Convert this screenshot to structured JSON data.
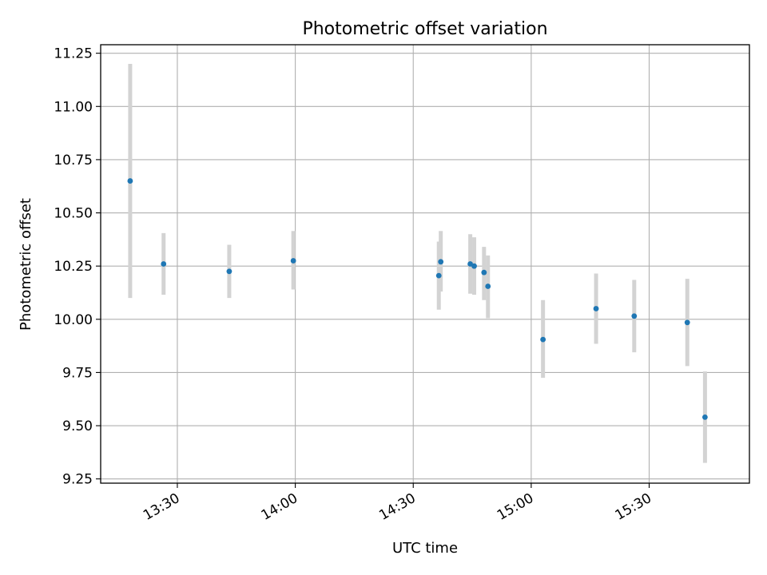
{
  "chart_data": {
    "type": "scatter",
    "title": "Photometric offset variation",
    "xlabel": "UTC time",
    "ylabel": "Photometric offset",
    "x_tick_labels": [
      "13:30",
      "14:00",
      "14:30",
      "15:00",
      "15:30"
    ],
    "x_tick_minutes": [
      810,
      840,
      870,
      900,
      930
    ],
    "xlim_minutes": [
      790.5,
      955.5
    ],
    "ylim": [
      9.23,
      11.29
    ],
    "y_ticks": [
      9.25,
      9.5,
      9.75,
      10.0,
      10.25,
      10.5,
      10.75,
      11.0,
      11.25
    ],
    "y_tick_labels": [
      "9.25",
      "9.50",
      "9.75",
      "10.00",
      "10.25",
      "10.50",
      "10.75",
      "11.00",
      "11.25"
    ],
    "grid": true,
    "colors": {
      "point": "#1f77b4",
      "error_bar": "#d3d3d3",
      "grid": "#b0b0b0",
      "axes": "#000000"
    },
    "points": [
      {
        "time": "13:18",
        "minutes": 798.0,
        "y": 10.65,
        "err_low": 10.1,
        "err_high": 11.2
      },
      {
        "time": "13:26",
        "minutes": 806.5,
        "y": 10.26,
        "err_low": 10.115,
        "err_high": 10.405
      },
      {
        "time": "13:43",
        "minutes": 823.2,
        "y": 10.225,
        "err_low": 10.1,
        "err_high": 10.35
      },
      {
        "time": "13:59",
        "minutes": 839.5,
        "y": 10.275,
        "err_low": 10.14,
        "err_high": 10.415
      },
      {
        "time": "14:36",
        "minutes": 876.5,
        "y": 10.205,
        "err_low": 10.045,
        "err_high": 10.365
      },
      {
        "time": "14:37",
        "minutes": 877.0,
        "y": 10.27,
        "err_low": 10.13,
        "err_high": 10.415
      },
      {
        "time": "14:44",
        "minutes": 884.5,
        "y": 10.26,
        "err_low": 10.12,
        "err_high": 10.4
      },
      {
        "time": "14:45",
        "minutes": 885.5,
        "y": 10.25,
        "err_low": 10.115,
        "err_high": 10.385
      },
      {
        "time": "14:48",
        "minutes": 888.0,
        "y": 10.22,
        "err_low": 10.09,
        "err_high": 10.34
      },
      {
        "time": "14:49",
        "minutes": 889.0,
        "y": 10.155,
        "err_low": 10.005,
        "err_high": 10.3
      },
      {
        "time": "15:03",
        "minutes": 903.0,
        "y": 9.905,
        "err_low": 9.725,
        "err_high": 10.09
      },
      {
        "time": "15:16",
        "minutes": 916.5,
        "y": 10.05,
        "err_low": 9.885,
        "err_high": 10.215
      },
      {
        "time": "15:26",
        "minutes": 926.2,
        "y": 10.015,
        "err_low": 9.845,
        "err_high": 10.185
      },
      {
        "time": "15:40",
        "minutes": 939.7,
        "y": 9.985,
        "err_low": 9.78,
        "err_high": 10.19
      },
      {
        "time": "15:44",
        "minutes": 944.2,
        "y": 9.54,
        "err_low": 9.325,
        "err_high": 9.755
      }
    ]
  }
}
